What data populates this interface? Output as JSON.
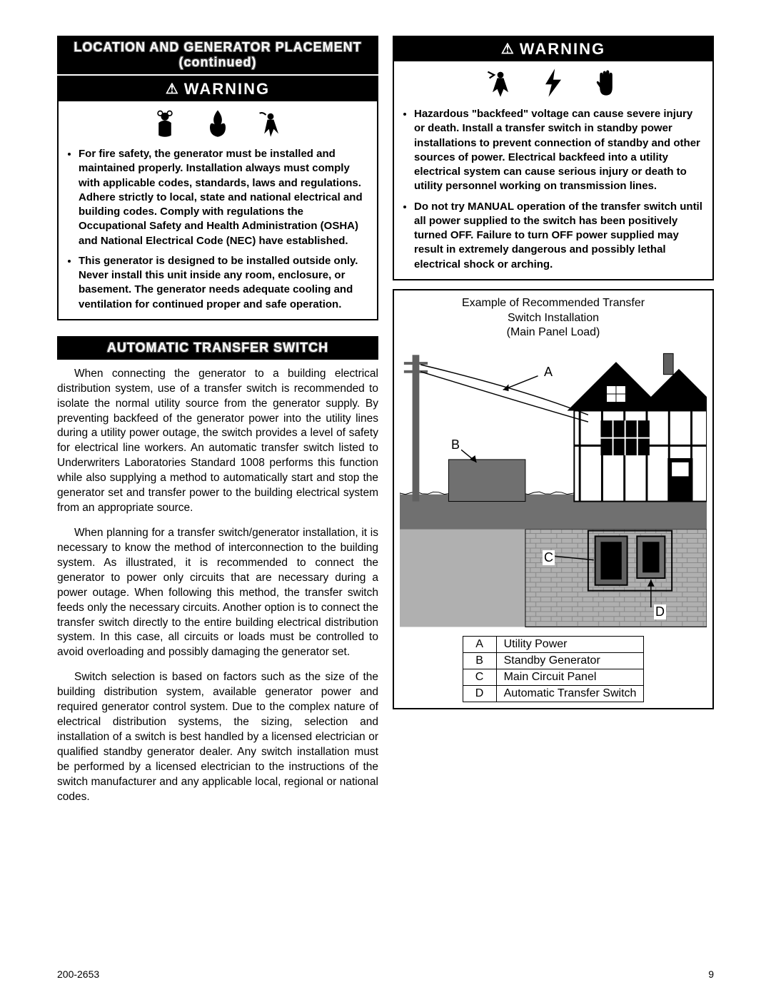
{
  "leftCol": {
    "header1": "LOCATION AND GENERATOR PLACEMENT (continued)",
    "warningLabel": "WARNING",
    "bullets": [
      "For fire safety, the generator must be installed and maintained properly. Installation always must comply with applicable codes, standards, laws and regulations. Adhere strictly to local, state and national electrical and building codes. Comply with regulations the Occupational Safety and Health Administration (OSHA) and National Electrical Code (NEC) have established.",
      "This generator is designed to be installed outside only. Never install this unit inside any room, enclosure, or basement. The generator needs  adequate cooling and ventilation for continued proper and safe operation."
    ],
    "header2": "AUTOMATIC TRANSFER SWITCH",
    "paras": [
      "When connecting the generator to a building electrical distribution system, use of a transfer switch is recommended to isolate the normal utility source from the generator supply. By preventing backfeed of the generator power into the utility lines during a utility power outage, the switch provides a level of safety for electrical line workers. An automatic transfer switch listed to Underwriters Laboratories Standard 1008 performs this function while also supplying a method to automatically start and stop the generator set and transfer power to the building electrical system from an appropriate source.",
      "When planning for a transfer switch/generator installation, it is necessary to know the method of interconnection to the building system. As illustrated, it is recommended to connect the generator to power only circuits that are necessary during a power outage. When following this method, the transfer switch feeds only the necessary circuits. Another option is to connect the transfer switch directly to the entire building electrical distribution system. In this case, all circuits or loads must be controlled to avoid overloading and possibly damaging the generator set.",
      "Switch selection is based on factors such as the size of the building distribution system, available generator power and required generator control system. Due to the complex nature of electrical distribution systems, the sizing, selection and installation of a switch is best handled by a licensed electrician or qualified standby generator dealer. Any switch installation must be performed by a licensed electrician to the instructions of the switch manufacturer and any applicable local, regional or national codes."
    ]
  },
  "rightCol": {
    "warningLabel": "WARNING",
    "bullets": [
      "Hazardous \"backfeed\" voltage can cause severe injury or death. Install a transfer switch in standby power installations to prevent connection of standby and other sources of power. Electrical backfeed into a utility electrical system can cause serious injury or death to utility personnel working on transmission lines.",
      "Do not try MANUAL operation of the transfer switch until all power supplied to the switch has been positively turned OFF. Failure to turn OFF power supplied may result in extremely dangerous and possibly lethal electrical shock or arching."
    ],
    "diagram": {
      "titleLine1": "Example of Recommended Transfer",
      "titleLine2": "Switch Installation",
      "titleLine3": "(Main Panel Load)",
      "labels": {
        "A": "A",
        "B": "B",
        "C": "C",
        "D": "D"
      },
      "legend": [
        {
          "k": "A",
          "v": "Utility Power"
        },
        {
          "k": "B",
          "v": "Standby Generator"
        },
        {
          "k": "C",
          "v": "Main Circuit Panel"
        },
        {
          "k": "D",
          "v": "Automatic Transfer Switch"
        }
      ],
      "colors": {
        "sky": "#ffffff",
        "ground": "#808080",
        "brick": "#b0b0b0",
        "pole": "#606060",
        "house": "#ffffff",
        "roof": "#000000",
        "line": "#000000"
      }
    }
  },
  "footer": {
    "docnum": "200-2653",
    "pagenum": "9"
  }
}
